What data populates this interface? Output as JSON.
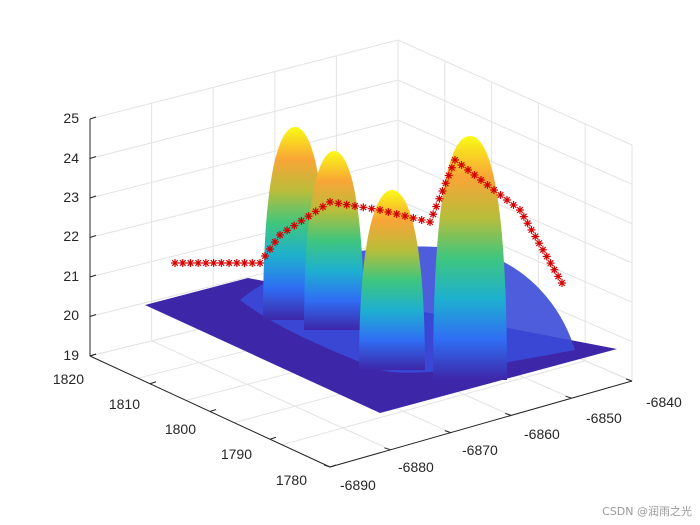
{
  "chart_data": {
    "type": "surface3d",
    "z_axis": {
      "ticks": [
        "19",
        "20",
        "21",
        "22",
        "23",
        "24",
        "25"
      ],
      "range": [
        19,
        25
      ]
    },
    "y_axis": {
      "ticks": [
        "1820",
        "1810",
        "1800",
        "1790",
        "1780"
      ]
    },
    "x_axis": {
      "ticks": [
        "-6890",
        "-6880",
        "-6870",
        "-6860",
        "-6850",
        "-6840"
      ]
    },
    "grid": true,
    "colormap": [
      "#3e26a8",
      "#2f6ef4",
      "#1eb0cf",
      "#3fc67e",
      "#b8bd3a",
      "#f9a536",
      "#f9fb15"
    ],
    "surface": {
      "base_z": 20,
      "peaks": [
        {
          "x": -6879,
          "y": 1812,
          "z": 24.8,
          "width": 3.2
        },
        {
          "x": -6874,
          "y": 1806,
          "z": 24.4,
          "width": 3.0
        },
        {
          "x": -6867,
          "y": 1800,
          "z": 23.7,
          "width": 3.0
        },
        {
          "x": -6858,
          "y": 1806,
          "z": 24.9,
          "width": 3.6
        }
      ]
    },
    "trajectory": {
      "marker": "*",
      "color": "#d40000",
      "points": [
        [
          21.3,
          0
        ],
        [
          21.3,
          4
        ],
        [
          21.3,
          8
        ],
        [
          21.3,
          12
        ],
        [
          21.25,
          16
        ],
        [
          21.25,
          20
        ],
        [
          21.2,
          24
        ],
        [
          21.3,
          28
        ],
        [
          21.5,
          32
        ],
        [
          21.8,
          36
        ],
        [
          22.0,
          40
        ],
        [
          22.3,
          44
        ],
        [
          22.6,
          48
        ],
        [
          22.8,
          52
        ],
        [
          22.9,
          56
        ],
        [
          22.85,
          60
        ],
        [
          22.8,
          64
        ],
        [
          22.7,
          68
        ],
        [
          22.7,
          72
        ],
        [
          22.75,
          76
        ],
        [
          22.8,
          80
        ],
        [
          22.85,
          84
        ],
        [
          22.7,
          88
        ],
        [
          22.6,
          92
        ],
        [
          22.5,
          96
        ],
        [
          22.5,
          100
        ],
        [
          22.55,
          104
        ],
        [
          22.6,
          108
        ],
        [
          22.6,
          112
        ],
        [
          23.7,
          116
        ],
        [
          23.7,
          120
        ],
        [
          23.6,
          124
        ],
        [
          23.4,
          128
        ],
        [
          23.2,
          132
        ],
        [
          22.9,
          136
        ],
        [
          22.6,
          140
        ],
        [
          22.3,
          144
        ],
        [
          22.0,
          148
        ],
        [
          21.7,
          152
        ],
        [
          21.4,
          156
        ],
        [
          21.1,
          160
        ],
        [
          20.8,
          164
        ]
      ]
    }
  },
  "watermark": "CSDN @润雨之光"
}
